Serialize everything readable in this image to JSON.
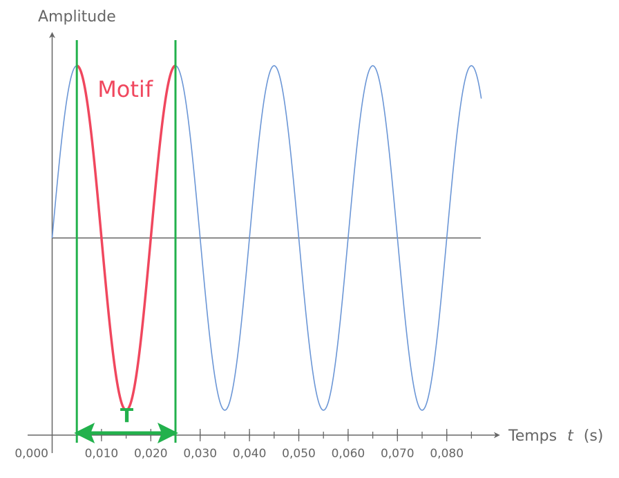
{
  "chart_data": {
    "type": "line",
    "title": "",
    "ylabel": "Amplitude",
    "xlabel": {
      "prefix": "Temps",
      "variable": "t",
      "unit": "(s)"
    },
    "xlim": [
      0,
      0.087
    ],
    "ylim": [
      -1.0,
      1.0
    ],
    "origin_label": "0,000",
    "x_ticks": [
      {
        "value": 0.01,
        "label": "0,010"
      },
      {
        "value": 0.02,
        "label": "0,020"
      },
      {
        "value": 0.03,
        "label": "0,030"
      },
      {
        "value": 0.04,
        "label": "0,040"
      },
      {
        "value": 0.05,
        "label": "0,050"
      },
      {
        "value": 0.06,
        "label": "0,060"
      },
      {
        "value": 0.07,
        "label": "0,070"
      },
      {
        "value": 0.08,
        "label": "0,080"
      }
    ],
    "minor_tick_step": 0.005,
    "series": [
      {
        "kind": "sine",
        "amplitude": 1.0,
        "period": 0.02,
        "x_start": 0.0,
        "x_end": 0.087,
        "color": "#6b96d6"
      }
    ],
    "motif": {
      "label": "Motif",
      "x_start": 0.005,
      "x_end": 0.025,
      "color": "#f0475e"
    },
    "period": {
      "label": "T",
      "x_start": 0.005,
      "x_end": 0.025,
      "color": "#22b14c"
    },
    "grid": false,
    "legend": "none"
  }
}
